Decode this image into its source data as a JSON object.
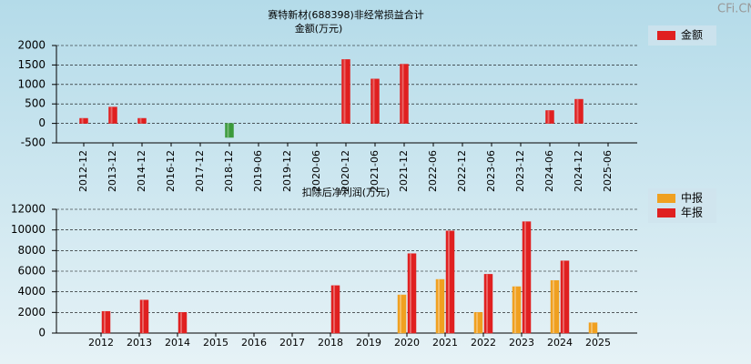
{
  "watermark": "CFi.CN",
  "chart_data": [
    {
      "type": "bar",
      "title": "赛特新材(688398)非经常损益合计",
      "subtitle": "金额(万元)",
      "categories": [
        "2012-12",
        "2013-12",
        "2014-12",
        "2016-12",
        "2017-12",
        "2018-12",
        "2019-06",
        "2019-12",
        "2020-06",
        "2020-12",
        "2021-06",
        "2021-12",
        "2022-06",
        "2022-12",
        "2023-06",
        "2023-12",
        "2024-06",
        "2024-12",
        "2025-06"
      ],
      "series": [
        {
          "name": "金额",
          "color": "#e02020",
          "negative_color": "#3a9a3a",
          "values": [
            130,
            420,
            130,
            null,
            null,
            -360,
            null,
            null,
            null,
            1640,
            1140,
            1520,
            null,
            null,
            null,
            null,
            330,
            620,
            null
          ]
        }
      ],
      "ylim": [
        -500,
        2000
      ],
      "yticks": [
        -500,
        0,
        500,
        1000,
        1500,
        2000
      ],
      "grid": true
    },
    {
      "type": "bar",
      "title": "扣除后净利润(万元)",
      "categories": [
        "2012",
        "2013",
        "2014",
        "2015",
        "2016",
        "2017",
        "2018",
        "2019",
        "2020",
        "2021",
        "2022",
        "2023",
        "2024",
        "2025"
      ],
      "series": [
        {
          "name": "中报",
          "color": "#f0a020",
          "values": [
            null,
            null,
            null,
            null,
            null,
            null,
            null,
            null,
            3700,
            5200,
            2000,
            4500,
            5100,
            1000
          ]
        },
        {
          "name": "年报",
          "color": "#e02020",
          "values": [
            2100,
            3200,
            2000,
            null,
            null,
            null,
            4600,
            null,
            7700,
            9900,
            5700,
            10800,
            7000,
            null
          ]
        }
      ],
      "ylim": [
        0,
        12000
      ],
      "yticks": [
        0,
        2000,
        4000,
        6000,
        8000,
        10000,
        12000
      ],
      "grid": true
    }
  ]
}
